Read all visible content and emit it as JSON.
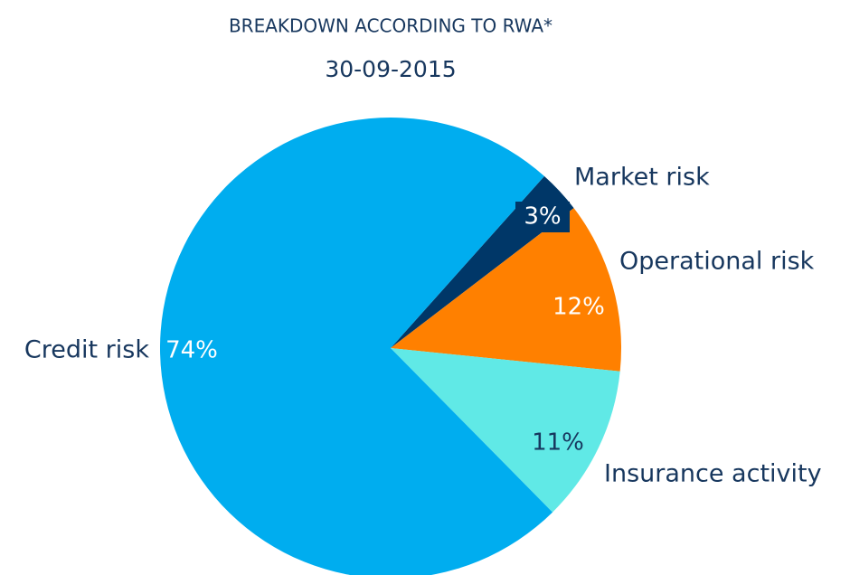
{
  "chart_data": {
    "type": "pie",
    "title": "BREAKDOWN ACCORDING TO RWA*",
    "subtitle": "30-09-2015",
    "categories": [
      "Market risk",
      "Operational risk",
      "Insurance activity",
      "Credit risk"
    ],
    "values": [
      3,
      12,
      11,
      74
    ],
    "value_labels": [
      "3%",
      "12%",
      "11%",
      "74%"
    ],
    "colors": [
      "#003768",
      "#ff8000",
      "#60e9e6",
      "#00adef"
    ]
  }
}
